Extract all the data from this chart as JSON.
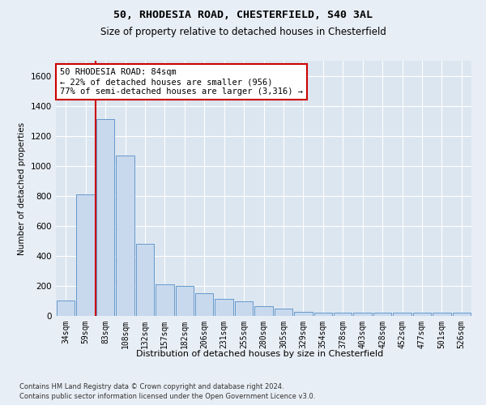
{
  "title1": "50, RHODESIA ROAD, CHESTERFIELD, S40 3AL",
  "title2": "Size of property relative to detached houses in Chesterfield",
  "xlabel": "Distribution of detached houses by size in Chesterfield",
  "ylabel": "Number of detached properties",
  "categories": [
    "34sqm",
    "59sqm",
    "83sqm",
    "108sqm",
    "132sqm",
    "157sqm",
    "182sqm",
    "206sqm",
    "231sqm",
    "255sqm",
    "280sqm",
    "305sqm",
    "329sqm",
    "354sqm",
    "378sqm",
    "403sqm",
    "428sqm",
    "452sqm",
    "477sqm",
    "501sqm",
    "526sqm"
  ],
  "values": [
    100,
    810,
    1310,
    1070,
    480,
    210,
    200,
    150,
    115,
    95,
    65,
    50,
    25,
    20,
    20,
    20,
    20,
    20,
    20,
    20,
    20
  ],
  "bar_color": "#c8d9ee",
  "bar_edge_color": "#6699cc",
  "vline_color": "#cc0000",
  "annotation_text": "50 RHODESIA ROAD: 84sqm\n← 22% of detached houses are smaller (956)\n77% of semi-detached houses are larger (3,316) →",
  "annotation_box_color": "#cc0000",
  "ylim": [
    0,
    1700
  ],
  "yticks": [
    0,
    200,
    400,
    600,
    800,
    1000,
    1200,
    1400,
    1600
  ],
  "footer1": "Contains HM Land Registry data © Crown copyright and database right 2024.",
  "footer2": "Contains public sector information licensed under the Open Government Licence v3.0.",
  "bg_color": "#e8eef5",
  "plot_bg_color": "#dce6f0"
}
